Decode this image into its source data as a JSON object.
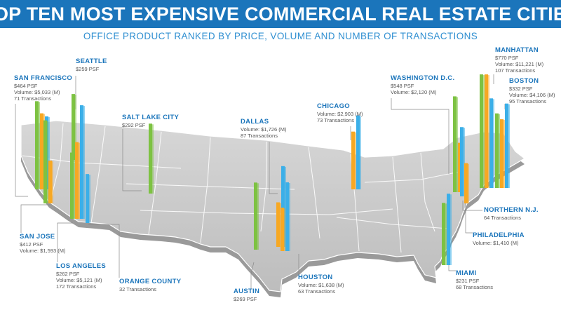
{
  "title": "TOP TEN MOST EXPENSIVE COMMERCIAL REAL ESTATE CITIES",
  "subtitle": "OFFICE PRODUCT RANKED BY PRICE, VOLUME AND NUMBER OF TRANSACTIONS",
  "colors": {
    "price": "#7dc242",
    "volume": "#f7a823",
    "transactions": "#3bafe8",
    "accent": "#1b75bb"
  },
  "chart_data": {
    "type": "bar",
    "metrics": [
      "price_psf",
      "volume_millions",
      "transactions"
    ],
    "cities": [
      {
        "name": "SAN FRANCISCO",
        "price_psf": 464,
        "volume_millions": 5033,
        "transactions": 71,
        "lines": [
          "$464 PSF",
          "Volume: $5,033 (M)",
          "71 Transactions"
        ]
      },
      {
        "name": "SEATTLE",
        "price_psf": 259,
        "lines": [
          "$259 PSF"
        ]
      },
      {
        "name": "SALT LAKE CITY",
        "price_psf": 292,
        "lines": [
          "$292 PSF"
        ]
      },
      {
        "name": "DALLAS",
        "volume_millions": 1726,
        "transactions": 87,
        "lines": [
          "Volume: $1,726 (M)",
          "87 Transactions"
        ]
      },
      {
        "name": "CHICAGO",
        "volume_millions": 2903,
        "transactions": 73,
        "lines": [
          "Volume: $2,903 (M)",
          "73 Transactions"
        ]
      },
      {
        "name": "WASHINGTON D.C.",
        "price_psf": 548,
        "volume_millions": 2120,
        "lines": [
          "$548 PSF",
          "Volume: $2,120 (M)"
        ]
      },
      {
        "name": "MANHATTAN",
        "price_psf": 770,
        "volume_millions": 11221,
        "transactions": 107,
        "lines": [
          "$770 PSF",
          "Volume: $11,221 (M)",
          "107 Transactions"
        ]
      },
      {
        "name": "BOSTON",
        "price_psf": 332,
        "volume_millions": 4106,
        "transactions": 95,
        "lines": [
          "$332 PSF",
          "Volume: $4,106 (M)",
          "95 Transactions"
        ]
      },
      {
        "name": "SAN JOSE",
        "price_psf": 412,
        "volume_millions": 1593,
        "lines": [
          "$412 PSF",
          "Volume: $1,593 (M)"
        ]
      },
      {
        "name": "LOS ANGELES",
        "price_psf": 262,
        "volume_millions": 5121,
        "transactions": 172,
        "lines": [
          "$262 PSF",
          "Volume: $5,121 (M)",
          "172 Transactions"
        ]
      },
      {
        "name": "ORANGE COUNTY",
        "transactions": 32,
        "lines": [
          "32 Transactions"
        ]
      },
      {
        "name": "AUSTIN",
        "price_psf": 269,
        "lines": [
          "$269 PSF"
        ]
      },
      {
        "name": "HOUSTON",
        "volume_millions": 1638,
        "transactions": 63,
        "lines": [
          "Volume: $1,638 (M)",
          "63 Transactions"
        ]
      },
      {
        "name": "NORTHERN N.J.",
        "transactions": 64,
        "lines": [
          "64 Transactions"
        ]
      },
      {
        "name": "PHILADELPHIA",
        "volume_millions": 1410,
        "lines": [
          "Volume: $1,410 (M)"
        ]
      },
      {
        "name": "MIAMI",
        "price_psf": 231,
        "transactions": 68,
        "lines": [
          "$231 PSF",
          "68 Transactions"
        ]
      }
    ]
  }
}
